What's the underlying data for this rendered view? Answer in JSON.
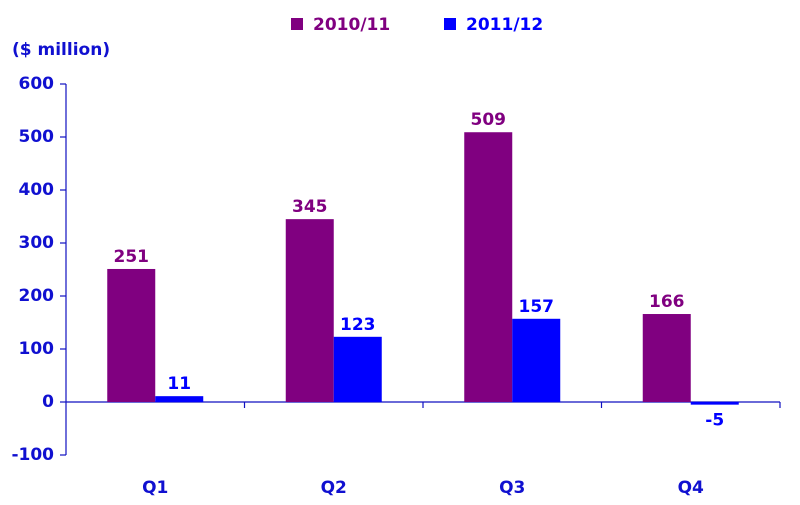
{
  "chart_data": {
    "type": "bar",
    "y_label": "($ million)",
    "categories": [
      "Q1",
      "Q2",
      "Q3",
      "Q4"
    ],
    "series": [
      {
        "name": "2010/11",
        "color": "#800080",
        "values": [
          251,
          345,
          509,
          166
        ]
      },
      {
        "name": "2011/12",
        "color": "#0000ff",
        "values": [
          11,
          123,
          157,
          -5
        ]
      }
    ],
    "ylim": [
      -100,
      600
    ],
    "yticks": [
      -100,
      0,
      100,
      200,
      300,
      400,
      500,
      600
    ],
    "grid": false
  }
}
